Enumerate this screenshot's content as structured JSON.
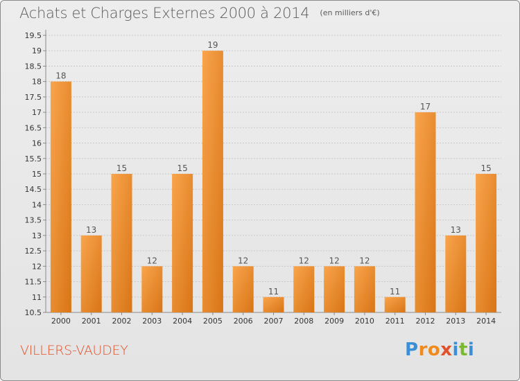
{
  "header": {
    "title": "Achats et Charges Externes 2000 à 2014",
    "subtitle": "(en milliers d'€)"
  },
  "footer": {
    "town": "VILLERS-VAUDEY",
    "logo": {
      "letters": [
        "P",
        "r",
        "o",
        "x",
        "i",
        "t",
        "i"
      ],
      "colors": [
        "#3a8fd6",
        "#f08a1c",
        "#f08a1c",
        "#e0522b",
        "#3a8fd6",
        "#7ab82f",
        "#3a8fd6"
      ]
    }
  },
  "colors": {
    "bar_light": "#f9a44c",
    "bar_dark": "#d87516",
    "axis": "#888888",
    "grid": "#c8c8c8",
    "text": "#333333"
  },
  "chart_data": {
    "type": "bar",
    "title": "Achats et Charges Externes 2000 à 2014",
    "subtitle": "(en milliers d'€)",
    "categories": [
      "2000",
      "2001",
      "2002",
      "2003",
      "2004",
      "2005",
      "2006",
      "2007",
      "2008",
      "2009",
      "2010",
      "2011",
      "2012",
      "2013",
      "2014"
    ],
    "values": [
      18,
      13,
      15,
      12,
      15,
      19,
      12,
      11,
      12,
      12,
      12,
      11,
      17,
      13,
      15
    ],
    "ylim": [
      10.5,
      19.5
    ],
    "yticks": [
      10.5,
      11,
      11.5,
      12,
      12.5,
      13,
      13.5,
      14,
      14.5,
      15,
      15.5,
      16,
      16.5,
      17,
      17.5,
      18,
      18.5,
      19,
      19.5
    ],
    "ytick_labels": [
      "10.5",
      "11",
      "11.5",
      "12",
      "12.5",
      "13",
      "13.5",
      "14",
      "14.5",
      "15",
      "15.5",
      "16",
      "16.5",
      "17",
      "17.5",
      "18",
      "18.5",
      "19",
      "19.5"
    ],
    "grid": true,
    "data_labels": true
  }
}
